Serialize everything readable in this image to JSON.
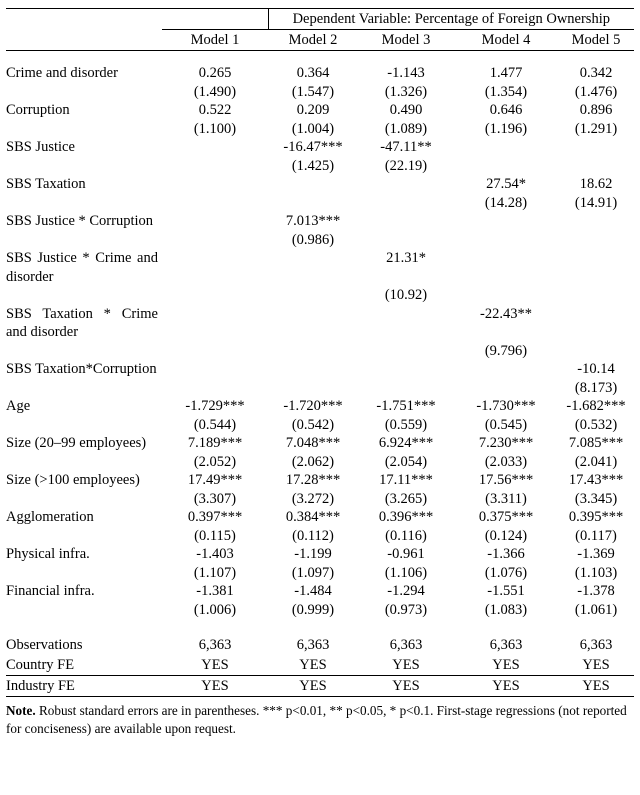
{
  "header": {
    "dependent_variable": "Dependent Variable: Percentage of Foreign Ownership",
    "models": [
      "Model 1",
      "Model 2",
      "Model 3",
      "Model 4",
      "Model 5"
    ]
  },
  "rows": [
    {
      "label": "Crime and disorder",
      "coef": [
        "0.265",
        "0.364",
        "-1.143",
        "1.477",
        "0.342"
      ],
      "se": [
        "(1.490)",
        "(1.547)",
        "(1.326)",
        "(1.354)",
        "(1.476)"
      ]
    },
    {
      "label": "Corruption",
      "coef": [
        "0.522",
        "0.209",
        "0.490",
        "0.646",
        "0.896"
      ],
      "se": [
        "(1.100)",
        "(1.004)",
        "(1.089)",
        "(1.196)",
        "(1.291)"
      ]
    },
    {
      "label": "SBS Justice",
      "coef": [
        "",
        "-16.47***",
        "-47.11**",
        "",
        ""
      ],
      "se": [
        "",
        "(1.425)",
        "(22.19)",
        "",
        ""
      ]
    },
    {
      "label": "SBS Taxation",
      "coef": [
        "",
        "",
        "",
        "27.54*",
        "18.62"
      ],
      "se": [
        "",
        "",
        "",
        "(14.28)",
        "(14.91)"
      ]
    },
    {
      "label": "SBS Justice * Corruption",
      "coef": [
        "",
        "7.013***",
        "",
        "",
        ""
      ],
      "se": [
        "",
        "(0.986)",
        "",
        "",
        ""
      ]
    },
    {
      "label": "SBS Justice * Crime and disorder",
      "coef": [
        "",
        "",
        "21.31*",
        "",
        ""
      ],
      "se": [
        "",
        "",
        "(10.92)",
        "",
        ""
      ]
    },
    {
      "label": "SBS Taxation * Crime and disorder",
      "coef": [
        "",
        "",
        "",
        "-22.43**",
        ""
      ],
      "se": [
        "",
        "",
        "",
        "(9.796)",
        ""
      ]
    },
    {
      "label": "SBS Taxation*Corruption",
      "coef": [
        "",
        "",
        "",
        "",
        "-10.14"
      ],
      "se": [
        "",
        "",
        "",
        "",
        "(8.173)"
      ]
    },
    {
      "label": "Age",
      "coef": [
        "-1.729***",
        "-1.720***",
        "-1.751***",
        "-1.730***",
        "-1.682***"
      ],
      "se": [
        "(0.544)",
        "(0.542)",
        "(0.559)",
        "(0.545)",
        "(0.532)"
      ]
    },
    {
      "label": "Size (20–99 employees)",
      "coef": [
        "7.189***",
        "7.048***",
        "6.924***",
        "7.230***",
        "7.085***"
      ],
      "se": [
        "(2.052)",
        "(2.062)",
        "(2.054)",
        "(2.033)",
        "(2.041)"
      ]
    },
    {
      "label": "Size (>100 employees)",
      "coef": [
        "17.49***",
        "17.28***",
        "17.11***",
        "17.56***",
        "17.43***"
      ],
      "se": [
        "(3.307)",
        "(3.272)",
        "(3.265)",
        "(3.311)",
        "(3.345)"
      ]
    },
    {
      "label": "Agglomeration",
      "coef": [
        "0.397***",
        "0.384***",
        "0.396***",
        "0.375***",
        "0.395***"
      ],
      "se": [
        "(0.115)",
        "(0.112)",
        "(0.116)",
        "(0.124)",
        "(0.117)"
      ]
    },
    {
      "label": "Physical infra.",
      "coef": [
        "-1.403",
        "-1.199",
        "-0.961",
        "-1.366",
        "-1.369"
      ],
      "se": [
        "(1.107)",
        "(1.097)",
        "(1.106)",
        "(1.076)",
        "(1.103)"
      ]
    },
    {
      "label": "Financial infra.",
      "coef": [
        "-1.381",
        "-1.484",
        "-1.294",
        "-1.551",
        "-1.378"
      ],
      "se": [
        "(1.006)",
        "(0.999)",
        "(0.973)",
        "(1.083)",
        "(1.061)"
      ]
    }
  ],
  "summary_rows": [
    {
      "label": "Observations",
      "values": [
        "6,363",
        "6,363",
        "6,363",
        "6,363",
        "6,363"
      ]
    },
    {
      "label": "Country FE",
      "values": [
        "YES",
        "YES",
        "YES",
        "YES",
        "YES"
      ]
    },
    {
      "label": "Industry FE",
      "values": [
        "YES",
        "YES",
        "YES",
        "YES",
        "YES"
      ]
    }
  ],
  "note": {
    "bold": "Note.",
    "text": " Robust standard errors are in parentheses. *** p<0.01, ** p<0.05, * p<0.1. First-stage regressions (not reported for conciseness) are available upon request."
  }
}
